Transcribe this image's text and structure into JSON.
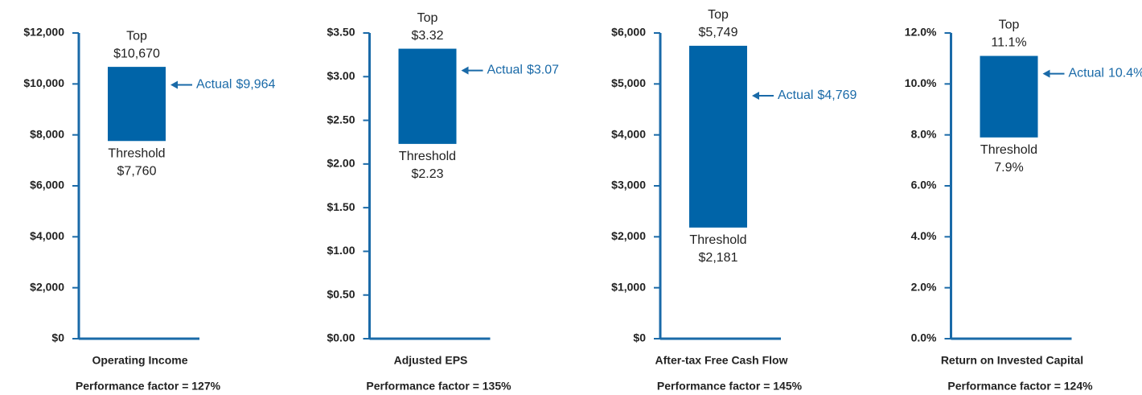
{
  "chart_data": [
    {
      "type": "bar",
      "title": "Operating Income",
      "subtitle": "Performance factor = 127%",
      "color": "#0064a8",
      "ylim": [
        0,
        12000
      ],
      "yticks": [
        {
          "value": 0,
          "label": "$0"
        },
        {
          "value": 2000,
          "label": "$2,000"
        },
        {
          "value": 4000,
          "label": "$4,000"
        },
        {
          "value": 6000,
          "label": "$6,000"
        },
        {
          "value": 8000,
          "label": "$8,000"
        },
        {
          "value": 10000,
          "label": "$10,000"
        },
        {
          "value": 12000,
          "label": "$12,000"
        }
      ],
      "series": [
        {
          "name": "Threshold",
          "values": [
            7760
          ],
          "value_labels": [
            "$7,760"
          ]
        },
        {
          "name": "Top",
          "values": [
            10670
          ],
          "value_labels": [
            "$10,670"
          ]
        },
        {
          "name": "Actual",
          "values": [
            9964
          ],
          "value_labels": [
            "$9,964"
          ]
        }
      ]
    },
    {
      "type": "bar",
      "title": "Adjusted EPS",
      "subtitle": "Performance factor = 135%",
      "color": "#0064a8",
      "ylim": [
        0,
        3.5
      ],
      "yticks": [
        {
          "value": 0,
          "label": "$0.00"
        },
        {
          "value": 0.5,
          "label": "$0.50"
        },
        {
          "value": 1,
          "label": "$1.00"
        },
        {
          "value": 1.5,
          "label": "$1.50"
        },
        {
          "value": 2,
          "label": "$2.00"
        },
        {
          "value": 2.5,
          "label": "$2.50"
        },
        {
          "value": 3,
          "label": "$3.00"
        },
        {
          "value": 3.5,
          "label": "$3.50"
        }
      ],
      "series": [
        {
          "name": "Threshold",
          "values": [
            2.23
          ],
          "value_labels": [
            "$2.23"
          ]
        },
        {
          "name": "Top",
          "values": [
            3.32
          ],
          "value_labels": [
            "$3.32"
          ]
        },
        {
          "name": "Actual",
          "values": [
            3.07
          ],
          "value_labels": [
            "$3.07"
          ]
        }
      ]
    },
    {
      "type": "bar",
      "title": "After-tax Free Cash Flow",
      "subtitle": "Performance factor = 145%",
      "color": "#0064a8",
      "ylim": [
        0,
        6000
      ],
      "yticks": [
        {
          "value": 0,
          "label": "$0"
        },
        {
          "value": 1000,
          "label": "$1,000"
        },
        {
          "value": 2000,
          "label": "$2,000"
        },
        {
          "value": 3000,
          "label": "$3,000"
        },
        {
          "value": 4000,
          "label": "$4,000"
        },
        {
          "value": 5000,
          "label": "$5,000"
        },
        {
          "value": 6000,
          "label": "$6,000"
        }
      ],
      "series": [
        {
          "name": "Threshold",
          "values": [
            2181
          ],
          "value_labels": [
            "$2,181"
          ]
        },
        {
          "name": "Top",
          "values": [
            5749
          ],
          "value_labels": [
            "$5,749"
          ]
        },
        {
          "name": "Actual",
          "values": [
            4769
          ],
          "value_labels": [
            "$4,769"
          ]
        }
      ]
    },
    {
      "type": "bar",
      "title": "Return on Invested Capital",
      "subtitle": "Performance factor = 124%",
      "color": "#0064a8",
      "ylim": [
        0,
        12
      ],
      "yticks": [
        {
          "value": 0,
          "label": "0.0%"
        },
        {
          "value": 2,
          "label": "2.0%"
        },
        {
          "value": 4,
          "label": "4.0%"
        },
        {
          "value": 6,
          "label": "6.0%"
        },
        {
          "value": 8,
          "label": "8.0%"
        },
        {
          "value": 10,
          "label": "10.0%"
        },
        {
          "value": 12,
          "label": "12.0%"
        }
      ],
      "series": [
        {
          "name": "Threshold",
          "values": [
            7.9
          ],
          "value_labels": [
            "7.9%"
          ]
        },
        {
          "name": "Top",
          "values": [
            11.1
          ],
          "value_labels": [
            "11.1%"
          ]
        },
        {
          "name": "Actual",
          "values": [
            10.4
          ],
          "value_labels": [
            "10.4%"
          ]
        }
      ]
    }
  ]
}
